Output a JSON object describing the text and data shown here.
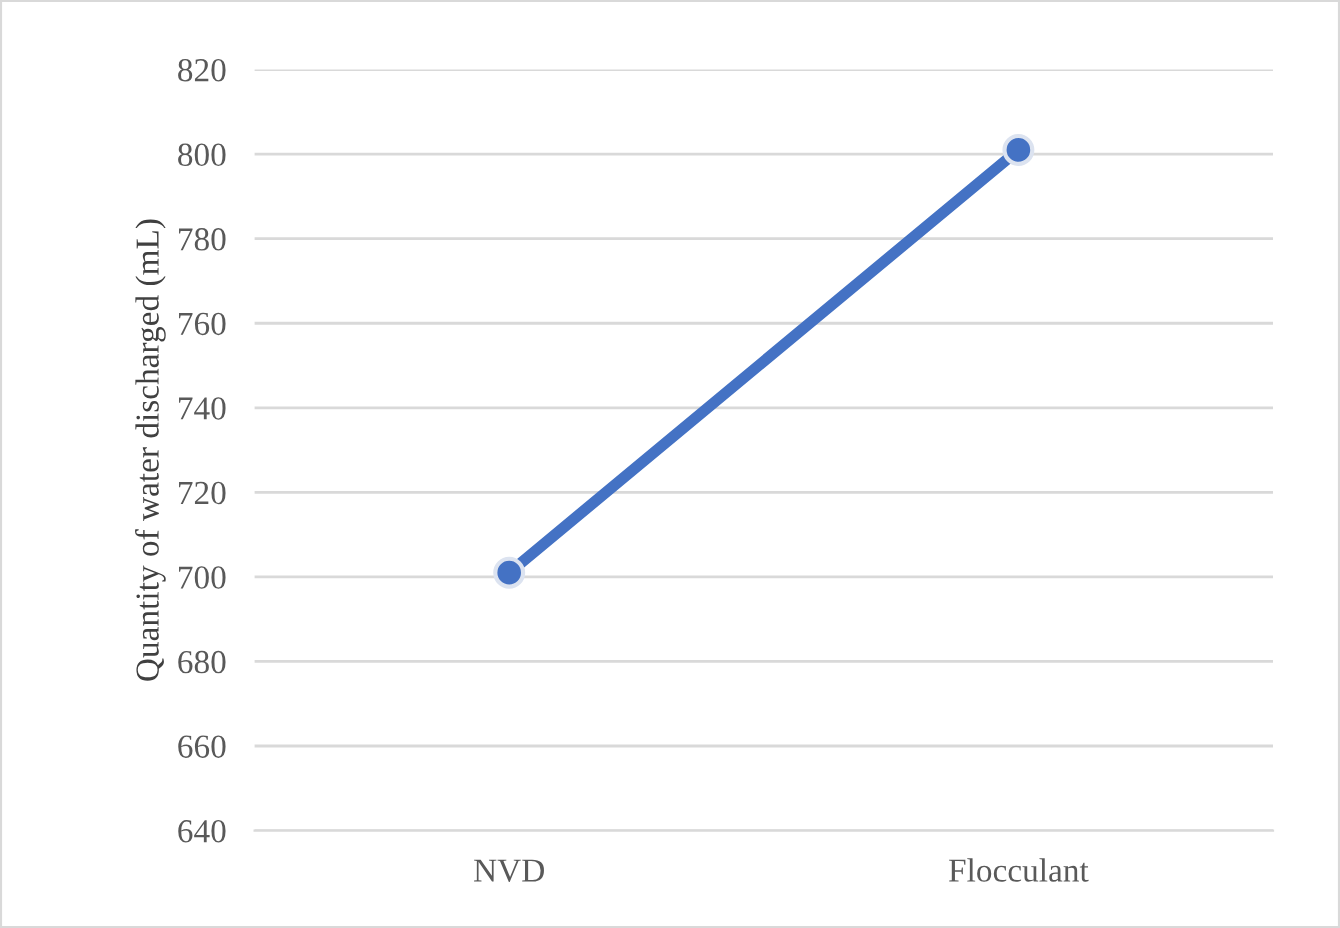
{
  "chart_data": {
    "type": "line",
    "ylabel": "Quantity of water discharged (mL)",
    "categories": [
      "NVD",
      "Flocculant"
    ],
    "series": [
      {
        "color": "#4472c4",
        "values": [
          701,
          801
        ]
      }
    ],
    "ylim": [
      640,
      820
    ],
    "yticks": [
      640,
      660,
      680,
      700,
      720,
      740,
      760,
      780,
      800,
      820
    ],
    "grid": "y",
    "marker": "circle",
    "line_style": "solid",
    "legend": false
  }
}
